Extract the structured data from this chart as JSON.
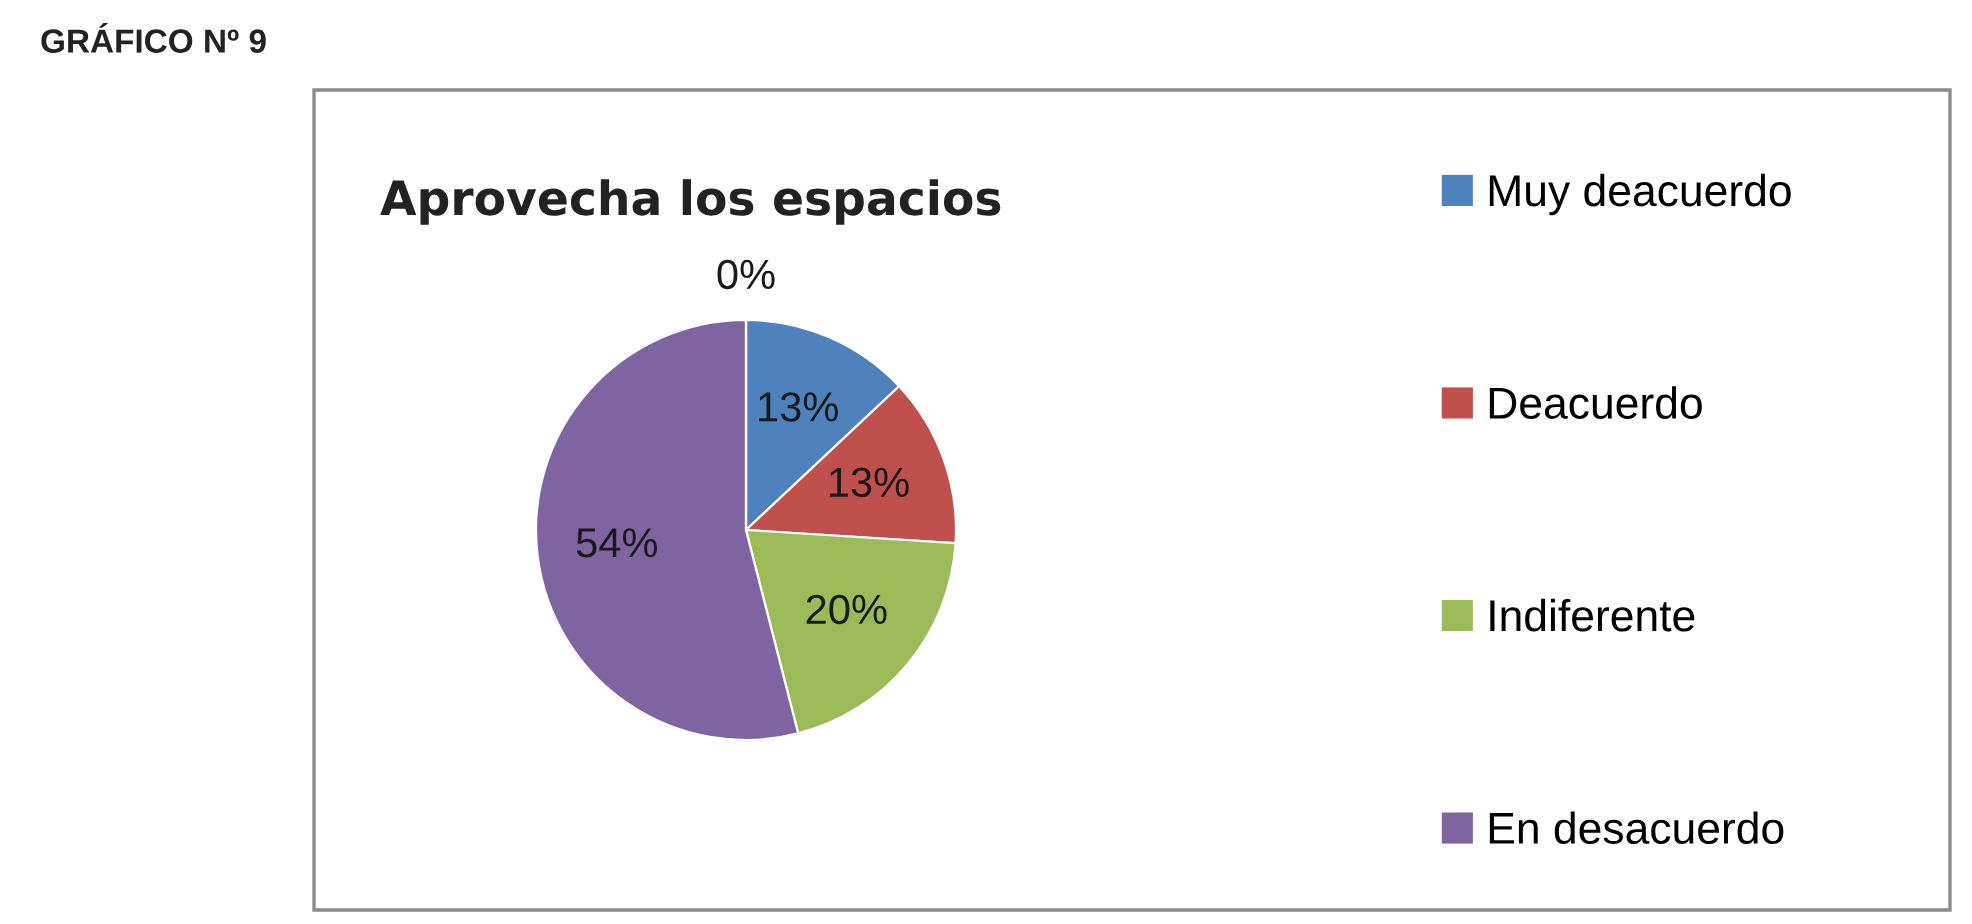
{
  "chart_data": {
    "type": "pie",
    "title": "Aprovecha los espacios",
    "categories": [
      "Muy deacuerdo",
      "Deacuerdo",
      "Indiferente",
      "En desacuerdo",
      null
    ],
    "values": [
      13,
      13,
      20,
      54,
      0
    ],
    "colors": [
      "#4f81bd",
      "#c0504d",
      "#9bbb59",
      "#8064a2",
      "#4bacc6"
    ],
    "value_labels": [
      "13%",
      "13%",
      "20%",
      "54%",
      "0%"
    ],
    "legend": "right",
    "annotations": [
      "GRÁFICO Nº 9"
    ]
  }
}
